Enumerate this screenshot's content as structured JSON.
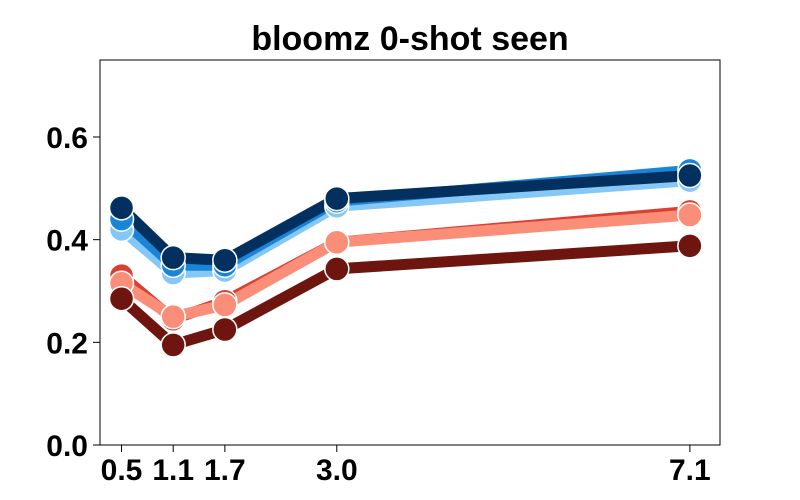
{
  "chart_data": {
    "type": "line",
    "title": "bloomz 0-shot seen",
    "xlabel": "",
    "ylabel": "",
    "x": [
      0.5,
      1.1,
      1.7,
      3.0,
      7.1
    ],
    "x_tick_labels": [
      "0.5",
      "1.1",
      "1.7",
      "3.0",
      "7.1"
    ],
    "y_ticks": [
      0.0,
      0.2,
      0.4,
      0.6
    ],
    "y_tick_labels": [
      "0.0",
      "0.2",
      "0.4",
      "0.6"
    ],
    "ylim": [
      0.0,
      0.75
    ],
    "xlim": [
      0.25,
      7.45
    ],
    "grid": false,
    "series": [
      {
        "color": "#85c8f8",
        "values": [
          0.42,
          0.335,
          0.34,
          0.465,
          0.515
        ]
      },
      {
        "color": "#1a85d6",
        "values": [
          0.44,
          0.35,
          0.35,
          0.475,
          0.535
        ]
      },
      {
        "color": "#03305e",
        "values": [
          0.462,
          0.365,
          0.36,
          0.48,
          0.525
        ]
      },
      {
        "color": "#d94032",
        "values": [
          0.33,
          0.245,
          0.28,
          0.395,
          0.455
        ]
      },
      {
        "color": "#fb8e78",
        "values": [
          0.315,
          0.25,
          0.273,
          0.395,
          0.448
        ]
      },
      {
        "color": "#6e1510",
        "values": [
          0.285,
          0.195,
          0.225,
          0.343,
          0.388
        ]
      }
    ]
  }
}
